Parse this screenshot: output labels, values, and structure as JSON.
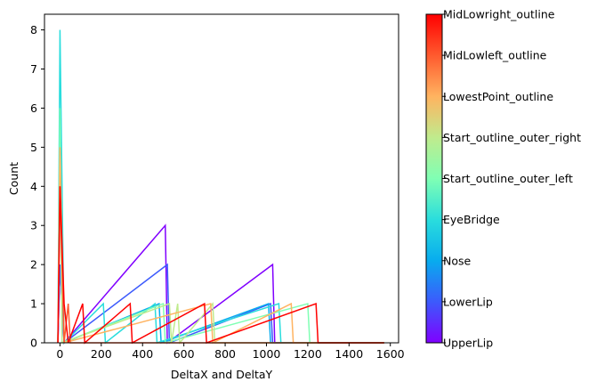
{
  "chart_data": {
    "type": "histogram",
    "histtype": "step",
    "xlabel": "DeltaX and DeltaY",
    "ylabel": "Count",
    "xlim": [
      -75,
      1640
    ],
    "ylim": [
      0,
      8.4
    ],
    "x_ticks": [
      0,
      200,
      400,
      600,
      800,
      1000,
      1200,
      1400,
      1600
    ],
    "y_ticks": [
      0,
      1,
      2,
      3,
      4,
      5,
      6,
      7,
      8
    ],
    "bin_width": 10,
    "bin_range": [
      -10,
      1570
    ],
    "grid": false,
    "colorbar": {
      "colormap": "rainbow",
      "labels": [
        "UpperLip",
        "LowerLip",
        "Nose",
        "EyeBridge",
        "Start_outline_outer_left",
        "Start_outline_outer_right",
        "LowestPoint_outline",
        "MidLowleft_outline",
        "MidLowright_outline"
      ]
    },
    "series": [
      {
        "name": "UpperLip",
        "color": "#8000ff",
        "bins": [
          {
            "x": 0,
            "count": 2
          },
          {
            "x": 10,
            "count": 2
          },
          {
            "x": 510,
            "count": 3
          },
          {
            "x": 1030,
            "count": 2
          }
        ]
      },
      {
        "name": "LowerLip",
        "color": "#3c5afc",
        "bins": [
          {
            "x": 0,
            "count": 2
          },
          {
            "x": 10,
            "count": 2
          },
          {
            "x": 520,
            "count": 2
          },
          {
            "x": 1020,
            "count": 1
          }
        ]
      },
      {
        "name": "Nose",
        "color": "#08acee",
        "bins": [
          {
            "x": 0,
            "count": 4
          },
          {
            "x": 10,
            "count": 4
          },
          {
            "x": 480,
            "count": 1
          },
          {
            "x": 1010,
            "count": 1
          }
        ]
      },
      {
        "name": "EyeBridge",
        "color": "#2adddd",
        "bins": [
          {
            "x": 0,
            "count": 8
          },
          {
            "x": 10,
            "count": 8
          },
          {
            "x": 210,
            "count": 1
          },
          {
            "x": 460,
            "count": 1
          },
          {
            "x": 1060,
            "count": 1
          }
        ]
      },
      {
        "name": "Start_outline_outer_left",
        "color": "#80ffb4",
        "bins": [
          {
            "x": 0,
            "count": 6
          },
          {
            "x": 500,
            "count": 1
          },
          {
            "x": 1200,
            "count": 1
          }
        ]
      },
      {
        "name": "Start_outline_outer_right",
        "color": "#c0eb8d",
        "bins": [
          {
            "x": 0,
            "count": 5
          },
          {
            "x": 530,
            "count": 1
          },
          {
            "x": 570,
            "count": 1
          },
          {
            "x": 740,
            "count": 1
          }
        ]
      },
      {
        "name": "LowestPoint_outline",
        "color": "#ffb360",
        "bins": [
          {
            "x": 0,
            "count": 5
          },
          {
            "x": 10,
            "count": 5
          },
          {
            "x": 730,
            "count": 1
          },
          {
            "x": 1120,
            "count": 1
          }
        ]
      },
      {
        "name": "MidLowleft_outline",
        "color": "#ff5a2e",
        "bins": [
          {
            "x": 0,
            "count": 4
          },
          {
            "x": 10,
            "count": 2
          },
          {
            "x": 40,
            "count": 1
          }
        ]
      },
      {
        "name": "MidLowright_outline",
        "color": "#ff0000",
        "bins": [
          {
            "x": 0,
            "count": 4
          },
          {
            "x": 10,
            "count": 4
          },
          {
            "x": 20,
            "count": 1
          },
          {
            "x": 30,
            "count": 1
          },
          {
            "x": 110,
            "count": 1
          },
          {
            "x": 340,
            "count": 1
          },
          {
            "x": 700,
            "count": 1
          },
          {
            "x": 1240,
            "count": 1
          }
        ]
      }
    ]
  }
}
